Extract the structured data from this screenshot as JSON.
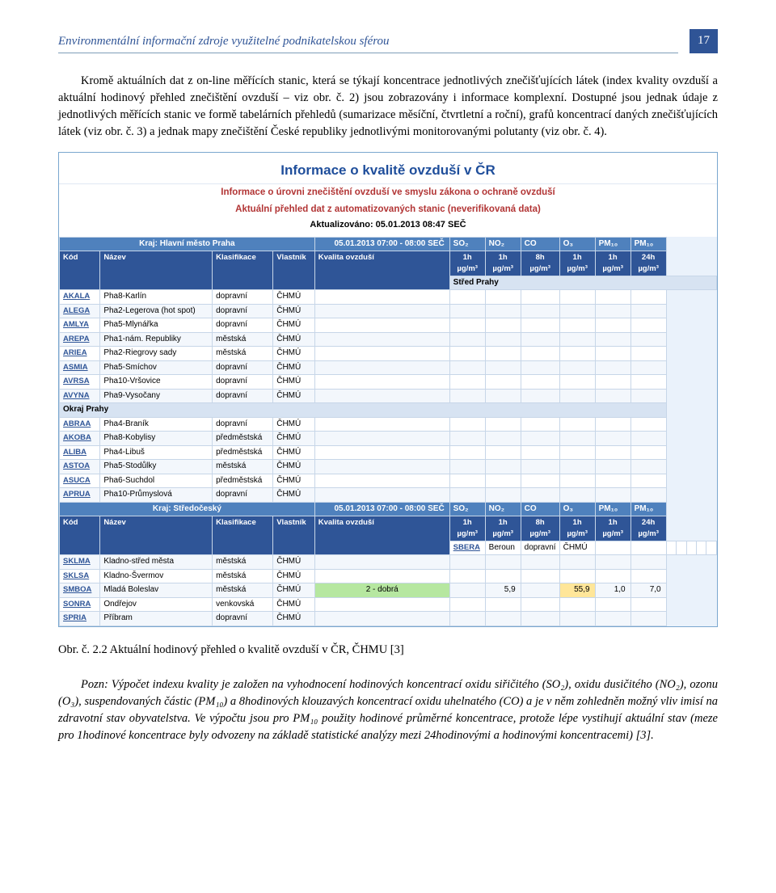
{
  "header": {
    "title": "Environmentální informační zdroje využitelné podnikatelskou sférou",
    "page": "17"
  },
  "para1": "Kromě aktuálních dat z on-line měřících stanic, která se týkají koncentrace jednotlivých znečišťujících látek (index kvality ovzduší a aktuální hodinový přehled znečištění ovzduší – viz obr. č. 2) jsou zobrazovány i informace komplexní. Dostupné jsou jednak údaje z jednotlivých měřících stanic ve formě tabelárních přehledů (sumarizace měsíční, čtvrtletní a roční), grafů koncentrací daných znečišťujících látek (viz obr. č. 3) a jednak mapy znečištění České republiky jednotlivými monitorovanými polutanty (viz obr. č. 4).",
  "fig": {
    "title": "Informace o kvalitě ovzduší v ČR",
    "sub1": "Informace o úrovni znečištění ovzduší ve smyslu zákona o ochraně ovzduší",
    "sub2": "Aktuální přehled dat z automatizovaných stanic (neverifikovaná data)",
    "updated_label": "Aktualizováno: 05.01.2013 08:47 SEČ",
    "region1": {
      "name": "Kraj: Hlavní město Praha",
      "datetime": "05.01.2013 07:00 - 08:00 SEČ"
    },
    "cols": {
      "kod": "Kód",
      "nazev": "Název",
      "klas": "Klasifikace",
      "vlast": "Vlastník",
      "kvalita": "Kvalita ovzduší",
      "so2": "SO₂",
      "no2": "NO₂",
      "co": "CO",
      "o3": "O₃",
      "pm10_1h": "PM₁₀",
      "pm10_24h": "PM₁₀",
      "l2a": "1h",
      "l2b": "1h",
      "l2c": "8h",
      "l2d": "1h",
      "l2e": "1h",
      "l2f": "24h",
      "unit": "µg/m³"
    },
    "sub_stred": "Střed Prahy",
    "rows_stred": [
      {
        "code": "AKALA",
        "name": "Pha8-Karlín",
        "klas": "dopravní",
        "own": "ČHMÚ"
      },
      {
        "code": "ALEGA",
        "name": "Pha2-Legerova (hot spot)",
        "klas": "dopravní",
        "own": "ČHMÚ"
      },
      {
        "code": "AMLYA",
        "name": "Pha5-Mlynářka",
        "klas": "dopravní",
        "own": "ČHMÚ"
      },
      {
        "code": "AREPA",
        "name": "Pha1-nám. Republiky",
        "klas": "městská",
        "own": "ČHMÚ"
      },
      {
        "code": "ARIEA",
        "name": "Pha2-Riegrovy sady",
        "klas": "městská",
        "own": "ČHMÚ"
      },
      {
        "code": "ASMIA",
        "name": "Pha5-Smíchov",
        "klas": "dopravní",
        "own": "ČHMÚ"
      },
      {
        "code": "AVRSA",
        "name": "Pha10-Vršovice",
        "klas": "dopravní",
        "own": "ČHMÚ"
      },
      {
        "code": "AVYNA",
        "name": "Pha9-Vysočany",
        "klas": "dopravní",
        "own": "ČHMÚ"
      }
    ],
    "sub_okraj": "Okraj Prahy",
    "rows_okraj": [
      {
        "code": "ABRAA",
        "name": "Pha4-Braník",
        "klas": "dopravní",
        "own": "ČHMÚ"
      },
      {
        "code": "AKOBA",
        "name": "Pha8-Kobylisy",
        "klas": "předměstská",
        "own": "ČHMÚ"
      },
      {
        "code": "ALIBA",
        "name": "Pha4-Libuš",
        "klas": "předměstská",
        "own": "ČHMÚ"
      },
      {
        "code": "ASTOA",
        "name": "Pha5-Stodůlky",
        "klas": "městská",
        "own": "ČHMÚ"
      },
      {
        "code": "ASUCA",
        "name": "Pha6-Suchdol",
        "klas": "předměstská",
        "own": "ČHMÚ"
      },
      {
        "code": "APRUA",
        "name": "Pha10-Průmyslová",
        "klas": "dopravní",
        "own": "ČHMÚ"
      }
    ],
    "region2": {
      "name": "Kraj: Středočeský",
      "datetime": "05.01.2013 07:00 - 08:00 SEČ"
    },
    "rows_stc": [
      {
        "code": "SBERA",
        "name": "Beroun",
        "klas": "dopravní",
        "own": "ČHMÚ"
      },
      {
        "code": "SKLMA",
        "name": "Kladno-střed města",
        "klas": "městská",
        "own": "ČHMÚ"
      },
      {
        "code": "SKLSA",
        "name": "Kladno-Švermov",
        "klas": "městská",
        "own": "ČHMÚ"
      },
      {
        "code": "SMBOA",
        "name": "Mladá Boleslav",
        "klas": "městská",
        "own": "ČHMÚ",
        "q": "2 - dobrá",
        "no2": "5,9",
        "o3": "55,9",
        "pm10_1": "1,0",
        "pm10_24": "7,0"
      },
      {
        "code": "SONRA",
        "name": "Ondřejov",
        "klas": "venkovská",
        "own": "ČHMÚ"
      },
      {
        "code": "SPRIA",
        "name": "Příbram",
        "klas": "dopravní",
        "own": "ČHMÚ"
      }
    ]
  },
  "caption": "Obr. č. 2.2 Aktuální hodinový přehled o kvalitě ovzduší v ČR,  ČHMU [3]",
  "footnote": "Pozn: Výpočet indexu kvality je založen na vyhodnocení hodinových koncentrací oxidu siřičitého (SO₂), oxidu dusičitého (NO₂), ozonu (O₃), suspendovaných částic (PM₁₀) a 8hodinových klouzavých koncentrací oxidu uhelnatého (CO) a je v něm zohledněn možný vliv imisí na zdravotní stav obyvatelstva. Ve výpočtu jsou pro PM₁₀ použity hodinové průměrné koncentrace, protože lépe vystihují aktuální stav (meze pro 1hodinové koncentrace byly odvozeny na základě statistické analýzy mezi 24hodinovými a hodinovými koncentracemi) [3]."
}
